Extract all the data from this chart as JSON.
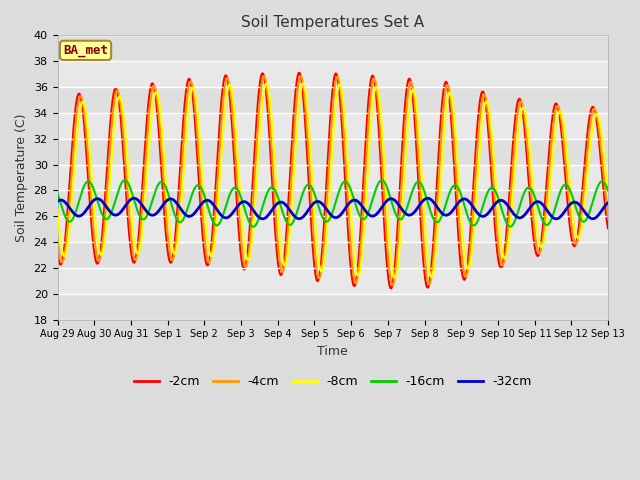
{
  "title": "Soil Temperatures Set A",
  "xlabel": "Time",
  "ylabel": "Soil Temperature (C)",
  "ylim": [
    18,
    40
  ],
  "yticks": [
    18,
    20,
    22,
    24,
    26,
    28,
    30,
    32,
    34,
    36,
    38,
    40
  ],
  "fig_bg": "#dcdcdc",
  "plot_bg": "#e8e8e8",
  "annotation_text": "BA_met",
  "annotation_box_color": "#ffff99",
  "annotation_border_color": "#aa8833",
  "annotation_text_color": "#880000",
  "colors": {
    "-2cm": "#ff0000",
    "-4cm": "#ff9900",
    "-8cm": "#ffff00",
    "-16cm": "#00cc00",
    "-32cm": "#0000cc"
  },
  "x_tick_labels": [
    "Aug 29",
    "Aug 30",
    "Aug 31",
    "Sep 1",
    "Sep 2",
    "Sep 3",
    "Sep 4",
    "Sep 5",
    "Sep 6",
    "Sep 7",
    "Sep 8",
    "Sep 9",
    "Sep 10",
    "Sep 11",
    "Sep 12",
    "Sep 13"
  ],
  "num_days": 15,
  "samples_per_day": 240
}
